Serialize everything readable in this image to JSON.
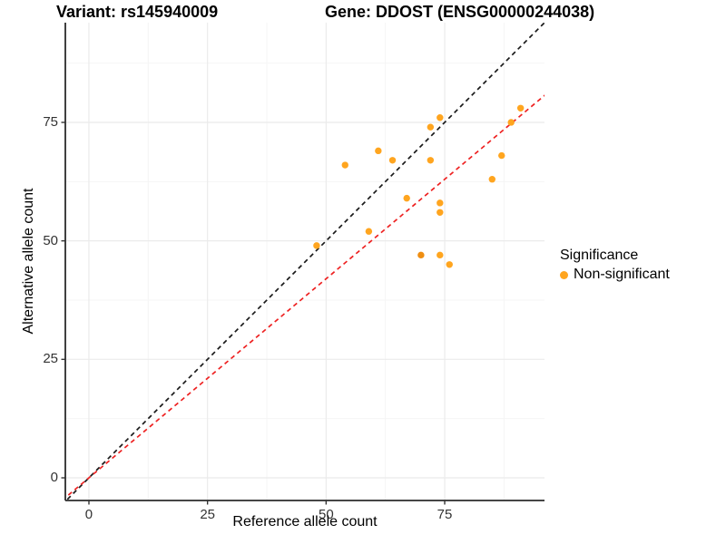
{
  "titles": {
    "variant": "Variant: rs145940009",
    "gene": "Gene: DDOST (ENSG00000244038)"
  },
  "chart_data": {
    "type": "scatter",
    "xlabel": "Reference allele count",
    "ylabel": "Alternative allele count",
    "x_ticks": [
      0,
      25,
      50,
      75
    ],
    "y_ticks": [
      0,
      25,
      50,
      75
    ],
    "minor_ticks": [
      12.5,
      37.5,
      62.5,
      87.5
    ],
    "xlim": [
      -4.97,
      96.04
    ],
    "ylim": [
      -4.78,
      96.04
    ],
    "grid": "on",
    "points": [
      {
        "x": 54,
        "y": 66
      },
      {
        "x": 61,
        "y": 69
      },
      {
        "x": 64,
        "y": 67
      },
      {
        "x": 72,
        "y": 74
      },
      {
        "x": 74,
        "y": 76
      },
      {
        "x": 72,
        "y": 67
      },
      {
        "x": 91,
        "y": 78
      },
      {
        "x": 89,
        "y": 75
      },
      {
        "x": 87,
        "y": 68
      },
      {
        "x": 85,
        "y": 63
      },
      {
        "x": 67,
        "y": 59
      },
      {
        "x": 74,
        "y": 58
      },
      {
        "x": 74,
        "y": 56
      },
      {
        "x": 59,
        "y": 52
      },
      {
        "x": 48,
        "y": 49
      },
      {
        "x": 70,
        "y": 47,
        "shade": "dark"
      },
      {
        "x": 74,
        "y": 47
      },
      {
        "x": 76,
        "y": 45
      }
    ],
    "lines": [
      {
        "name": "identity-line",
        "slope": 1.0,
        "intercept": 0,
        "color": "#1a1a1a",
        "style": "dashed"
      },
      {
        "name": "ratio-line",
        "slope": 0.84,
        "intercept": 0,
        "color": "#ee2222",
        "style": "dashed"
      }
    ],
    "colors": {
      "point": "#FFA51F",
      "point_dark": "#EF8E12",
      "grid_major": "#EBEBEB",
      "grid_minor": "#F5F5F5",
      "axis": "#2b2b2b",
      "tick": "#333333"
    },
    "legend": {
      "title": "Significance",
      "position": "right",
      "items": [
        {
          "label": "Non-significant",
          "color": "#FFA51F"
        }
      ]
    }
  }
}
